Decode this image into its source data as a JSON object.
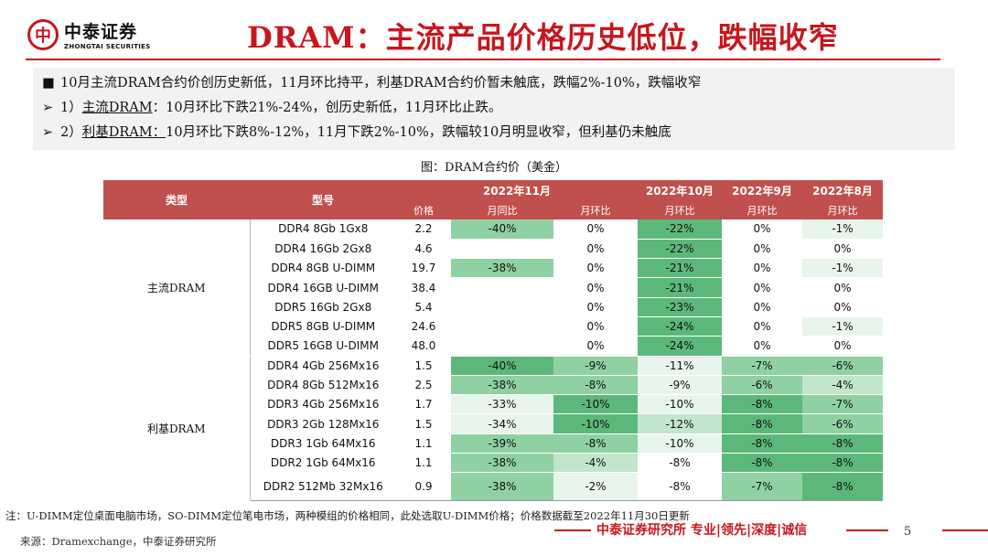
{
  "logo": {
    "cn": "中泰证券",
    "en": "ZHONGTAI SECURITIES",
    "mark": "中"
  },
  "title": "DRAM：主流产品价格历史低位，跌幅收窄",
  "bullets": [
    {
      "marker": "■",
      "text": "10月主流DRAM合约价创历史新低，11月环比持平，利基DRAM合约价暂未触底，跌幅2%-10%，跌幅收窄"
    },
    {
      "marker": "➢",
      "prefix": "1）",
      "underlined": "主流DRAM",
      "text": "：10月环比下跌21%-24%，创历史新低，11月环比止跌。"
    },
    {
      "marker": "➢",
      "prefix": "2）",
      "underlined": "利基DRAM：",
      "text": "10月环比下跌8%-12%，11月下跌2%-10%，跌幅较10月明显收窄，但利基仍未触底"
    }
  ],
  "caption": "图：DRAM合约价（美金）",
  "table": {
    "headers": {
      "type": "类型",
      "model": "型号",
      "nov": "2022年11月",
      "oct": "2022年10月",
      "sep": "2022年9月",
      "aug": "2022年8月",
      "price": "价格",
      "yoy": "月同比",
      "mom": "月环比",
      "oct_mom": "月环比",
      "sep_mom": "月环比",
      "aug_mom": "月环比"
    },
    "groups": [
      {
        "category": "主流DRAM",
        "rows": [
          {
            "model": "DDR4 8Gb 1Gx8",
            "price": "2.2",
            "yoy": "-40%",
            "mom": "0%",
            "oct": "-22%",
            "sep": "0%",
            "aug": "-1%"
          },
          {
            "model": "DDR4 16Gb 2Gx8",
            "price": "4.6",
            "yoy": "",
            "mom": "0%",
            "oct": "-22%",
            "sep": "0%",
            "aug": "0%"
          },
          {
            "model": "DDR4 8GB  U-DIMM",
            "price": "19.7",
            "yoy": "-38%",
            "mom": "0%",
            "oct": "-21%",
            "sep": "0%",
            "aug": "-1%"
          },
          {
            "model": "DDR4 16GB  U-DIMM",
            "price": "38.4",
            "yoy": "",
            "mom": "0%",
            "oct": "-21%",
            "sep": "0%",
            "aug": "0%"
          },
          {
            "model": "DDR5 16Gb  2Gx8",
            "price": "5.4",
            "yoy": "",
            "mom": "0%",
            "oct": "-23%",
            "sep": "0%",
            "aug": "0%"
          },
          {
            "model": "DDR5 8GB  U-DIMM",
            "price": "24.6",
            "yoy": "",
            "mom": "0%",
            "oct": "-24%",
            "sep": "0%",
            "aug": "-1%"
          },
          {
            "model": "DDR5 16GB  U-DIMM",
            "price": "48.0",
            "yoy": "",
            "mom": "0%",
            "oct": "-24%",
            "sep": "0%",
            "aug": "0%"
          }
        ]
      },
      {
        "category": "利基DRAM",
        "rows": [
          {
            "model": "DDR4 4Gb 256Mx16",
            "price": "1.5",
            "yoy": "-40%",
            "mom": "-9%",
            "oct": "-11%",
            "sep": "-7%",
            "aug": "-6%"
          },
          {
            "model": "DDR4 8Gb 512Mx16",
            "price": "2.5",
            "yoy": "-38%",
            "mom": "-8%",
            "oct": "-9%",
            "sep": "-6%",
            "aug": "-4%"
          },
          {
            "model": "DDR3 4Gb 256Mx16",
            "price": "1.7",
            "yoy": "-33%",
            "mom": "-10%",
            "oct": "-10%",
            "sep": "-8%",
            "aug": "-7%"
          },
          {
            "model": "DDR3 2Gb 128Mx16",
            "price": "1.5",
            "yoy": "-34%",
            "mom": "-10%",
            "oct": "-12%",
            "sep": "-8%",
            "aug": "-6%"
          },
          {
            "model": "DDR3 1Gb 64Mx16",
            "price": "1.1",
            "yoy": "-39%",
            "mom": "-8%",
            "oct": "-10%",
            "sep": "-8%",
            "aug": "-8%"
          },
          {
            "model": "DDR2 1Gb 64Mx16",
            "price": "1.1",
            "yoy": "-38%",
            "mom": "-4%",
            "oct": "-8%",
            "sep": "-8%",
            "aug": "-8%"
          },
          {
            "model": "DDR2 512Mb 32Mx16",
            "price": "0.9",
            "yoy": "-38%",
            "mom": "-2%",
            "oct": "-8%",
            "sep": "-7%",
            "aug": "-8%"
          }
        ]
      }
    ]
  },
  "colors": {
    "accent": "#c8161d",
    "header": "#c0504d",
    "green_dark": "#5cb87a",
    "green_mid": "#8fd1a3",
    "green_light": "#c2e6cc",
    "green_pale": "#e8f5ec"
  },
  "footnote": "注：U-DIMM定位桌面电脑市场，SO-DIMM定位笔电市场，两种模组的价格相同，此处选取U-DIMM价格；价格数据截至2022年11月30日更新",
  "source": "来源：Dramexchange，中泰证券研究所",
  "slogan": "中泰证券研究所 专业|领先|深度|诚信",
  "page_number": "5"
}
